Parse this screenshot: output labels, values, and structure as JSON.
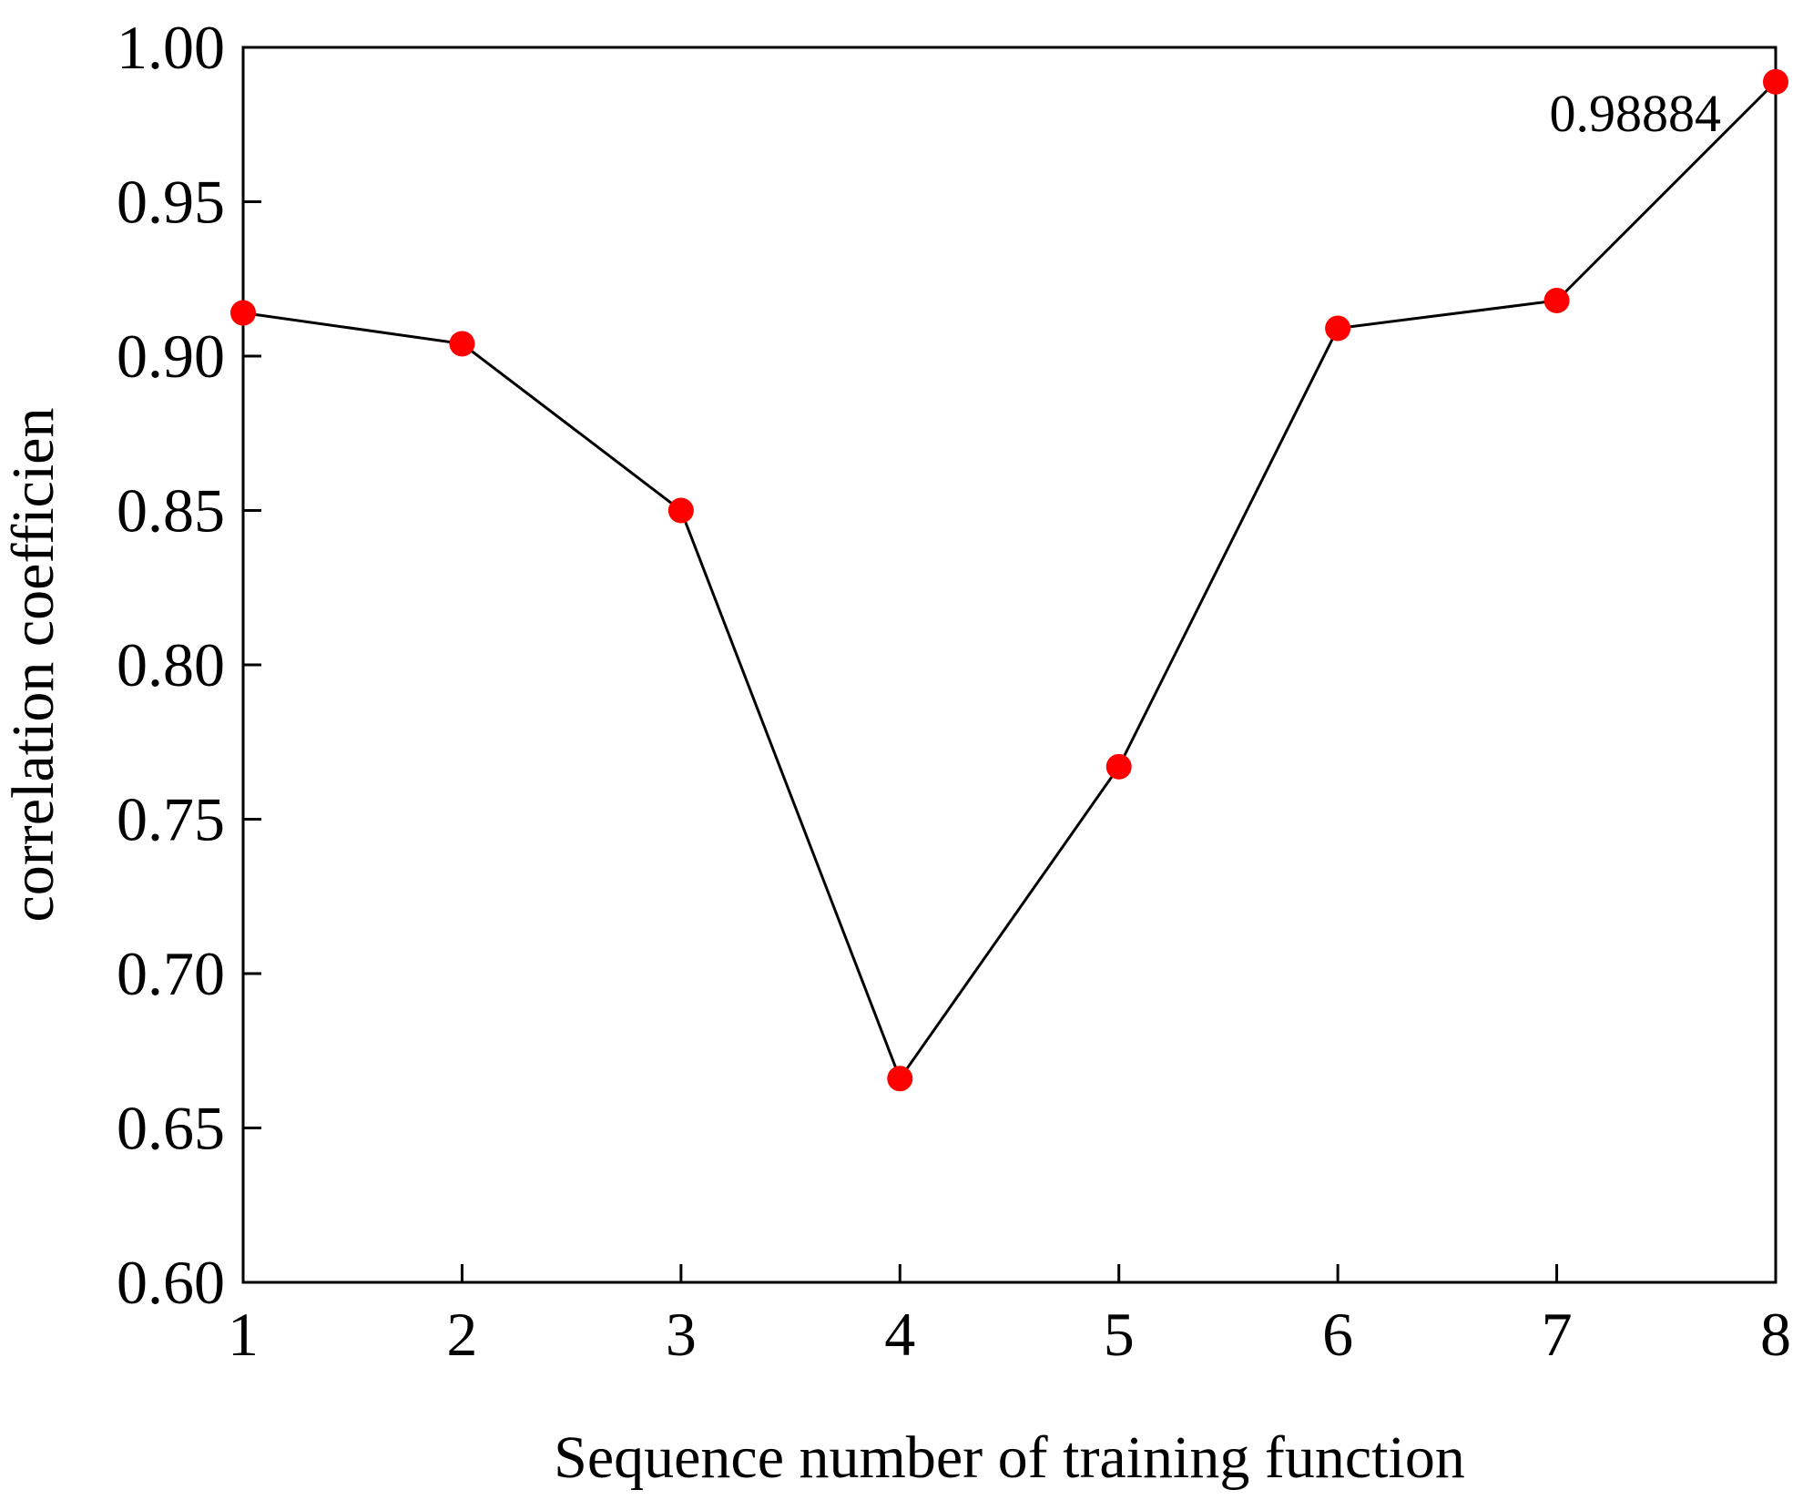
{
  "chart_data": {
    "type": "line",
    "title": "",
    "xlabel": "Sequence number of training function",
    "ylabel": "correlation coefficien",
    "x": [
      1,
      2,
      3,
      4,
      5,
      6,
      7,
      8
    ],
    "xticks": [
      "1",
      "2",
      "3",
      "4",
      "5",
      "6",
      "7",
      "8"
    ],
    "yticks": [
      "0.60",
      "0.65",
      "0.70",
      "0.75",
      "0.80",
      "0.85",
      "0.90",
      "0.95",
      "1.00"
    ],
    "xlim": [
      1,
      8
    ],
    "ylim": [
      0.6,
      1.0
    ],
    "grid": false,
    "series": [
      {
        "values": [
          0.914,
          0.904,
          0.85,
          0.666,
          0.767,
          0.909,
          0.918,
          0.98884
        ],
        "line_color": "#000000",
        "marker_color": "#ff0000"
      }
    ],
    "annotations": [
      {
        "text": "0.98884",
        "x": 8,
        "y": 0.98884
      }
    ]
  }
}
